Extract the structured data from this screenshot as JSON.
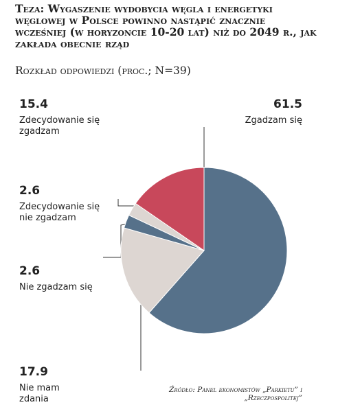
{
  "chart_data": {
    "type": "pie",
    "title": "Teza: Wygaszenie wydobycia węgla i energetyki węglowej w Polsce powinno nastąpić znacznie wcześniej (w horyzoncie 10-20 lat) niż do 2049 r., jak zakłada obecnie rząd",
    "subtitle": "Rozkład odpowiedzi (proc.; N=39)",
    "categories": [
      "Zgadzam się",
      "Nie mam zdania",
      "Nie zgadzam się",
      "Zdecydowanie się nie zgadzam",
      "Zdecydowanie się zgadzam"
    ],
    "values": [
      61.5,
      17.9,
      2.6,
      2.6,
      15.4
    ],
    "colors": [
      "#56718a",
      "#ddd6d2",
      "#56718a",
      "#ddd6d2",
      "#c8485b"
    ],
    "source": "Źródło: Panel ekonomistów „Parkietu” i „Rzeczpospolitej”"
  }
}
